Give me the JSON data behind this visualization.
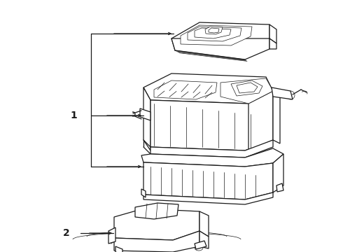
{
  "bg": "#ffffff",
  "lc": "#1a1a1a",
  "lw": 0.9,
  "lw_thin": 0.5,
  "figsize": [
    4.9,
    3.6
  ],
  "dpi": 100,
  "label1": "1",
  "label2": "2"
}
